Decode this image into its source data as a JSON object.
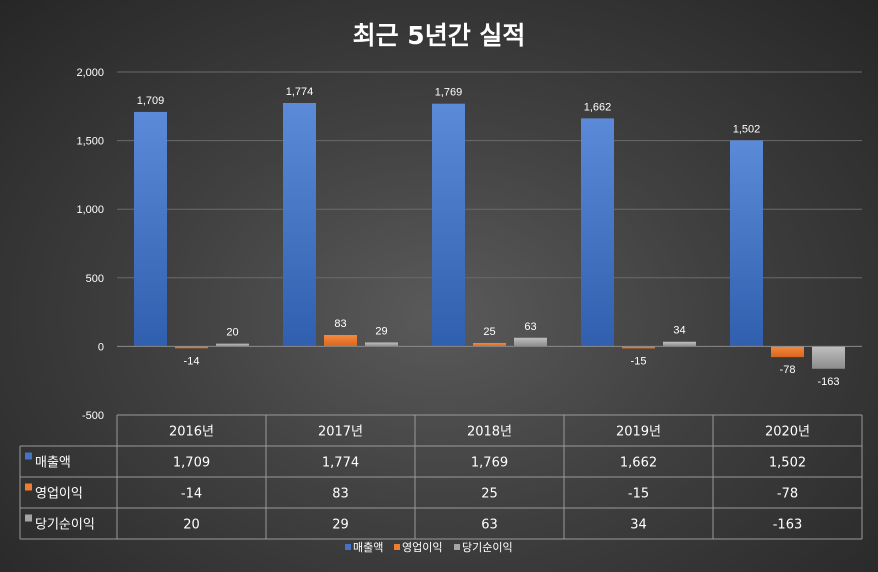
{
  "chart_data": {
    "type": "bar",
    "title": "최근 5년간 실적",
    "categories": [
      "2016년",
      "2017년",
      "2018년",
      "2019년",
      "2020년"
    ],
    "series": [
      {
        "name": "매출액",
        "color": "#4472c4",
        "values": [
          1709,
          1774,
          1769,
          1662,
          1502
        ],
        "labels": [
          "1,709",
          "1,774",
          "1,769",
          "1,662",
          "1,502"
        ]
      },
      {
        "name": "영업이익",
        "color": "#ed7d31",
        "values": [
          -14,
          83,
          25,
          -15,
          -78
        ],
        "labels": [
          "-14",
          "83",
          "25",
          "-15",
          "-78"
        ]
      },
      {
        "name": "당기순이익",
        "color": "#a5a5a5",
        "values": [
          20,
          29,
          63,
          34,
          -163
        ],
        "labels": [
          "20",
          "29",
          "63",
          "34",
          "-163"
        ]
      }
    ],
    "ylim": [
      -500,
      2000
    ],
    "yticks": [
      2000,
      1500,
      1000,
      500,
      0,
      -500
    ],
    "ytick_labels": [
      "2,000",
      "1,500",
      "1,000",
      "500",
      "0",
      "-500"
    ],
    "grid": true,
    "data_table": true,
    "legend_position": "bottom"
  }
}
